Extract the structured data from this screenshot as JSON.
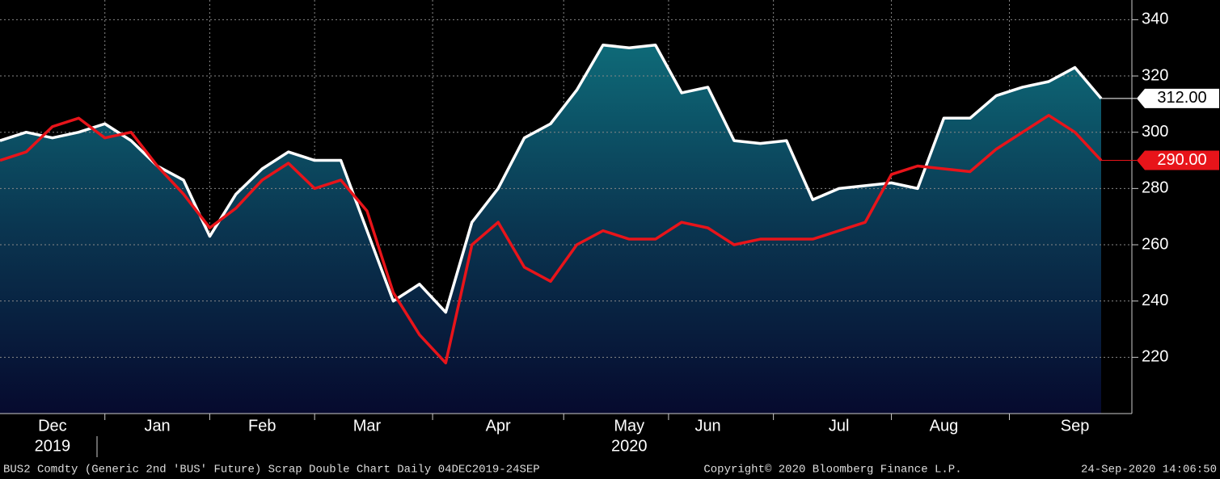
{
  "chart_data": {
    "type": "line",
    "categories": [
      null,
      null,
      "Dec",
      null,
      null,
      null,
      "Jan",
      null,
      null,
      null,
      "Feb",
      null,
      null,
      null,
      "Mar",
      null,
      null,
      null,
      null,
      "Apr",
      null,
      null,
      null,
      null,
      "May",
      null,
      null,
      "Jun",
      null,
      null,
      null,
      null,
      "Jul",
      null,
      null,
      null,
      "Aug",
      null,
      null,
      null,
      null,
      "Sep",
      null
    ],
    "year_labels": [
      "2019",
      "2020"
    ],
    "series": [
      {
        "color": "#ffffff",
        "area": true,
        "last_label": "312.00",
        "values": [
          297,
          300,
          298,
          300,
          303,
          297,
          288,
          283,
          263,
          278,
          287,
          293,
          290,
          290,
          265,
          240,
          246,
          236,
          268,
          280,
          298,
          303,
          315,
          331,
          330,
          331,
          314,
          316,
          297,
          296,
          297,
          276,
          280,
          281,
          282,
          280,
          305,
          305,
          313,
          316,
          318,
          323,
          312
        ]
      },
      {
        "color": "#e8141a",
        "area": false,
        "last_label": "290.00",
        "values": [
          290,
          293,
          302,
          305,
          298,
          300,
          288,
          278,
          266,
          273,
          283,
          289,
          280,
          283,
          272,
          243,
          228,
          218,
          260,
          268,
          252,
          247,
          260,
          265,
          262,
          262,
          268,
          266,
          260,
          262,
          262,
          262,
          265,
          268,
          285,
          288,
          287,
          286,
          294,
          300,
          306,
          300,
          290
        ]
      }
    ],
    "ylim": [
      200,
      347
    ],
    "yticks": [
      220,
      240,
      260,
      280,
      300,
      320,
      340
    ],
    "grid": true,
    "footer": {
      "left": "BUS2 Comdty (Generic 2nd 'BUS' Future) Scrap Double Chart  Daily 04DEC2019-24SEP",
      "center": "Copyright© 2020 Bloomberg Finance L.P.",
      "right": "24-Sep-2020 14:06:50"
    }
  }
}
